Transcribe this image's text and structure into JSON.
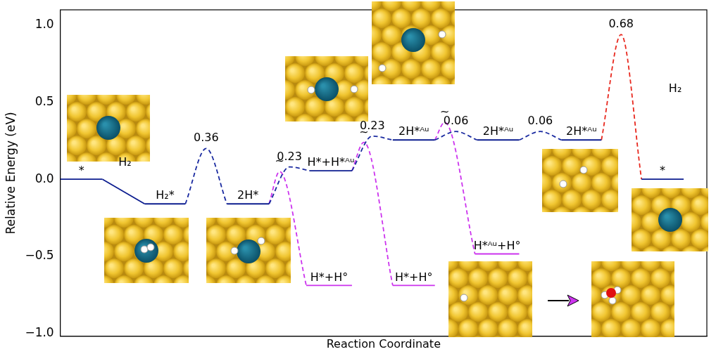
{
  "chart_data": {
    "type": "line",
    "y_label": "Relative Energy (eV)",
    "x_label": "Reaction Coordinate",
    "tick_labels": "y",
    "grid": false,
    "xlim": [
      0,
      92
    ],
    "ylim": [
      -1.02,
      1.1
    ],
    "yticks": [
      {
        "value": -1,
        "label": "−1.0"
      },
      {
        "value": -0.5,
        "label": "−0.5"
      },
      {
        "value": 0,
        "label": "0.0"
      },
      {
        "value": 0.5,
        "label": "0.5"
      },
      {
        "value": 1,
        "label": "1.0"
      }
    ],
    "levels": [
      {
        "label": "*",
        "x": [
          0,
          6
        ],
        "y": 0,
        "color": "#0b1c8f"
      },
      {
        "label": "H₂*",
        "x": [
          12,
          17.8
        ],
        "y": -0.16,
        "color": "#0b1c8f"
      },
      {
        "label": "2H*",
        "x": [
          23.7,
          29.7
        ],
        "y": -0.16,
        "color": "#0b1c8f"
      },
      {
        "label": "H*+H*ᴬᵘ",
        "x": [
          35.5,
          41.5
        ],
        "y": 0.055,
        "color": "#0b1c8f"
      },
      {
        "label": "2H*ᴬᵘ",
        "x": [
          47.3,
          53.3
        ],
        "y": 0.255,
        "color": "#0b1c8f"
      },
      {
        "label": "2H*ᴬᵘ",
        "x": [
          59.3,
          65.3
        ],
        "y": 0.255,
        "color": "#0b1c8f"
      },
      {
        "label": "2H*ᴬᵘ",
        "x": [
          71.3,
          77.0
        ],
        "y": 0.255,
        "color": "#0b1c8f"
      },
      {
        "label": "*",
        "x": [
          82.7,
          88.7
        ],
        "y": 0,
        "color": "#0b1c8f"
      },
      {
        "label": "H*+H°",
        "x": [
          35.0,
          41.5
        ],
        "y": -0.69,
        "color": "#cc33ee"
      },
      {
        "label": "H*+H°",
        "x": [
          47.3,
          53.3
        ],
        "y": -0.69,
        "color": "#cc33ee"
      },
      {
        "label": "H*ᴬᵘ+H°",
        "x": [
          59.0,
          65.3
        ],
        "y": -0.485,
        "color": "#cc33ee"
      }
    ],
    "connectors": [
      {
        "x": [
          6,
          12
        ],
        "y": [
          0,
          -0.16
        ],
        "color": "#0b1c8f",
        "line_style": "solid"
      },
      {
        "x": [
          17.8,
          20.75,
          23.7
        ],
        "y": [
          -0.16,
          0.2,
          -0.16
        ],
        "label": "0.36",
        "color": "#1a2aa0",
        "line_style": "dashed"
      },
      {
        "x": [
          29.7,
          32.6,
          35.5
        ],
        "y": [
          -0.16,
          0.08,
          0.055
        ],
        "label": "0.23",
        "color": "#1a2aa0",
        "line_style": "dashed"
      },
      {
        "x": [
          29.7,
          31.2,
          35.0
        ],
        "y": [
          -0.16,
          0.05,
          -0.69
        ],
        "label": "~",
        "color": "#cc33ee",
        "line_style": "dashed"
      },
      {
        "x": [
          41.5,
          44.4,
          47.3
        ],
        "y": [
          0.055,
          0.28,
          0.255
        ],
        "label": "0.23",
        "color": "#1a2aa0",
        "line_style": "dashed"
      },
      {
        "x": [
          41.5,
          43.2,
          47.3
        ],
        "y": [
          0.055,
          0.24,
          -0.69
        ],
        "label": "~",
        "color": "#cc33ee",
        "line_style": "dashed"
      },
      {
        "x": [
          53.3,
          56.3,
          59.3
        ],
        "y": [
          0.255,
          0.31,
          0.255
        ],
        "label": "0.06",
        "color": "#1a2aa0",
        "line_style": "dashed"
      },
      {
        "x": [
          53.3,
          54.7,
          59.0
        ],
        "y": [
          0.255,
          0.37,
          -0.485
        ],
        "label": "~",
        "color": "#cc33ee",
        "line_style": "dashed"
      },
      {
        "x": [
          65.3,
          68.3,
          71.3
        ],
        "y": [
          0.255,
          0.31,
          0.255
        ],
        "label": "0.06",
        "color": "#1a2aa0",
        "line_style": "dashed"
      },
      {
        "x": [
          77.0,
          79.8,
          82.7
        ],
        "y": [
          0.255,
          0.94,
          0
        ],
        "label": "0.68",
        "color": "#e8281e",
        "line_style": "dashed"
      }
    ],
    "annotations": [
      {
        "text": "H₂",
        "x": 9.2,
        "y": 0.07
      },
      {
        "text": "H₂",
        "x": 87.5,
        "y": 0.55
      }
    ]
  }
}
